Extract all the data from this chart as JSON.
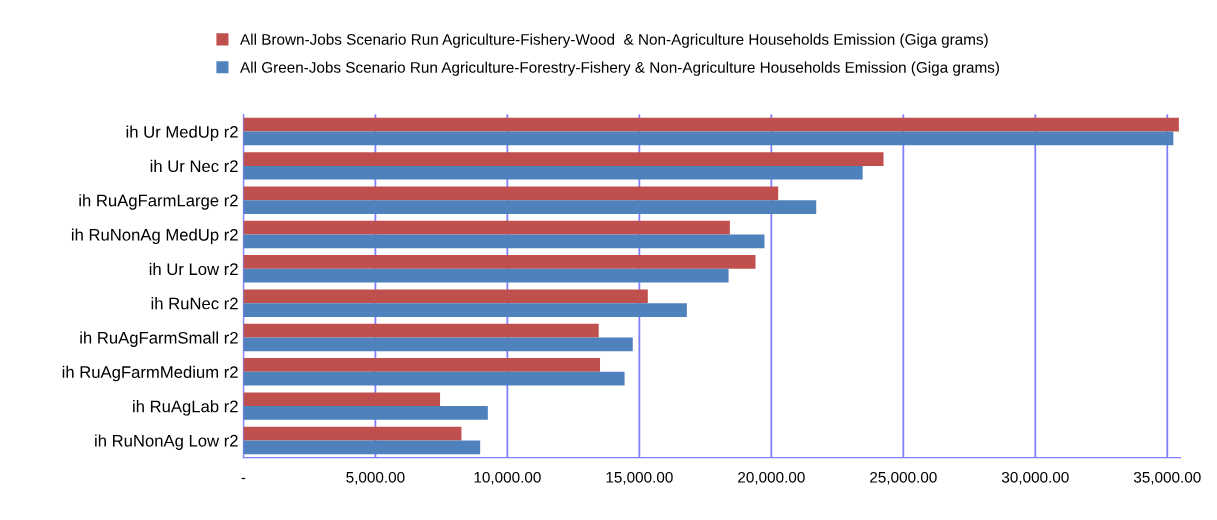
{
  "chart_data": {
    "type": "bar",
    "orientation": "horizontal",
    "categories": [
      "ih Ur MedUp r2",
      "ih Ur Nec r2",
      "ih RuAgFarmLarge r2",
      "ih RuNonAg MedUp r2",
      "ih Ur Low r2",
      "ih RuNec r2",
      "ih RuAgFarmSmall r2",
      "ih RuAgFarmMedium r2",
      "ih RuAgLab r2",
      "ih RuNonAg Low r2"
    ],
    "series": [
      {
        "name": "All Brown-Jobs Scenario Run Agriculture-Fishery-Wood  & Non-Agriculture Households Emission (Giga grams)",
        "color": "#c0504d",
        "values": [
          35440,
          24250,
          20260,
          18430,
          19400,
          15320,
          13460,
          13510,
          7450,
          8260
        ]
      },
      {
        "name": "All Green-Jobs Scenario Run Agriculture-Forestry-Fishery & Non-Agriculture Households Emission (Giga grams)",
        "color": "#4f81bd",
        "values": [
          35230,
          23460,
          21700,
          19740,
          18380,
          16800,
          14750,
          14440,
          9260,
          8970
        ]
      }
    ],
    "xlim": [
      0,
      35500
    ],
    "xticks": [
      {
        "value": 0,
        "label": "-"
      },
      {
        "value": 5000,
        "label": "5,000.00"
      },
      {
        "value": 10000,
        "label": "10,000.00"
      },
      {
        "value": 15000,
        "label": "15,000.00"
      },
      {
        "value": 20000,
        "label": "20,000.00"
      },
      {
        "value": 25000,
        "label": "25,000.00"
      },
      {
        "value": 30000,
        "label": "30,000.00"
      },
      {
        "value": 35000,
        "label": "35,000.00"
      }
    ],
    "grid": "x",
    "legend": "top"
  }
}
